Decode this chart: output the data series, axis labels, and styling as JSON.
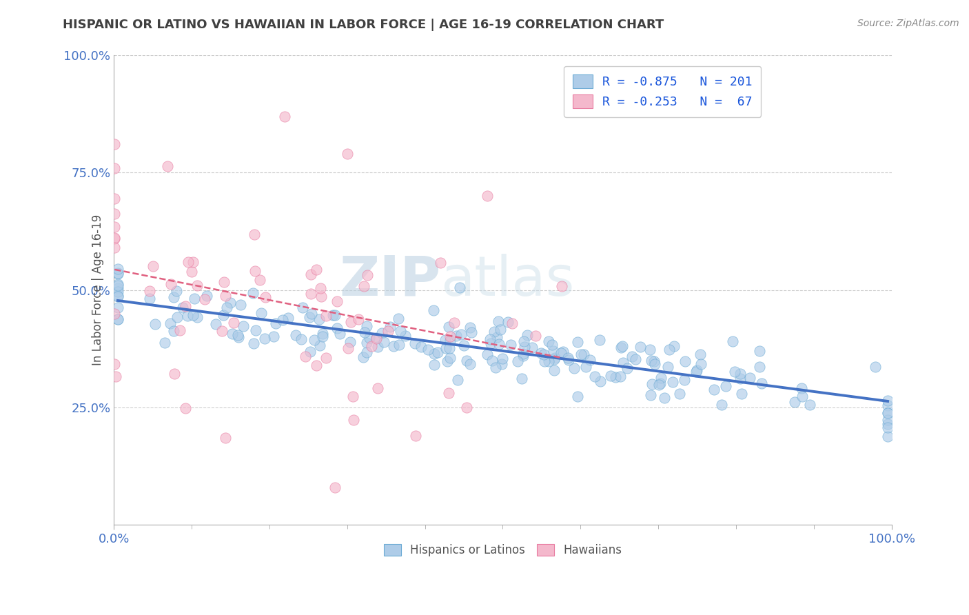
{
  "title": "HISPANIC OR LATINO VS HAWAIIAN IN LABOR FORCE | AGE 16-19 CORRELATION CHART",
  "source": "Source: ZipAtlas.com",
  "ylabel": "In Labor Force | Age 16-19",
  "xlim": [
    0.0,
    1.0
  ],
  "ylim": [
    0.0,
    1.0
  ],
  "xtick_labels": [
    "0.0%",
    "100.0%"
  ],
  "ytick_positions": [
    0.25,
    0.5,
    0.75,
    1.0
  ],
  "ytick_labels": [
    "25.0%",
    "50.0%",
    "75.0%",
    "100.0%"
  ],
  "r_hispanic": -0.875,
  "n_hispanic": 201,
  "r_hawaiian": -0.253,
  "n_hawaiian": 67,
  "color_hispanic": "#aecce8",
  "color_hawaiian": "#f4b8cc",
  "edge_hispanic": "#6aaad4",
  "edge_hawaiian": "#e87aa0",
  "line_color_hispanic": "#4472c4",
  "line_color_hawaiian": "#e06080",
  "watermark_zip": "ZIP",
  "watermark_atlas": "atlas",
  "background_color": "#ffffff",
  "grid_color": "#c8c8c8",
  "title_color": "#404040",
  "axis_label_color": "#555555",
  "tick_color": "#4472c4",
  "legend_r_color": "#1a56db",
  "scatter_alpha": 0.65,
  "scatter_size": 120
}
